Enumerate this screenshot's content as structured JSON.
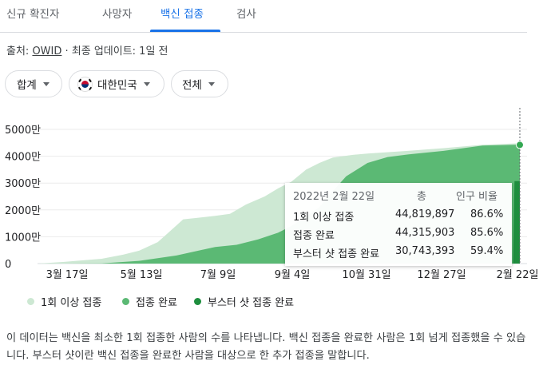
{
  "tabs": [
    {
      "label": "신규 확진자"
    },
    {
      "label": "사망자"
    },
    {
      "label": "백신 접종"
    },
    {
      "label": "검사"
    }
  ],
  "source": {
    "prefix": "출처: ",
    "name": "OWID",
    "suffix": " · 최종 업데이트: 1일 전"
  },
  "filters": {
    "scope": "합계",
    "country": "대한민국",
    "range": "전체"
  },
  "chart_data": {
    "type": "area",
    "x_tick_labels": [
      "3월 17일",
      "5월 13일",
      "7월 9일",
      "9월 4일",
      "10월 31일",
      "12월 27일",
      "2월 22일"
    ],
    "y_tick_labels": [
      "0",
      "1000만",
      "2000만",
      "3000만",
      "4000만",
      "5000만"
    ],
    "ylim": [
      0,
      5000
    ],
    "y_unit": "만",
    "x_range": [
      "2021-02-26",
      "2022-02-22"
    ],
    "series": [
      {
        "name": "1회 이상 접종",
        "color": "#cde8d3",
        "points": [
          [
            "2021-02-26",
            0
          ],
          [
            "2021-03-17",
            60
          ],
          [
            "2021-04-15",
            180
          ],
          [
            "2021-05-01",
            330
          ],
          [
            "2021-05-13",
            480
          ],
          [
            "2021-05-27",
            800
          ],
          [
            "2021-06-05",
            1200
          ],
          [
            "2021-06-15",
            1650
          ],
          [
            "2021-06-25",
            1700
          ],
          [
            "2021-07-09",
            1780
          ],
          [
            "2021-07-20",
            1850
          ],
          [
            "2021-08-01",
            2200
          ],
          [
            "2021-08-15",
            2500
          ],
          [
            "2021-08-25",
            2800
          ],
          [
            "2021-09-04",
            3050
          ],
          [
            "2021-09-15",
            3500
          ],
          [
            "2021-09-25",
            3750
          ],
          [
            "2021-10-05",
            3950
          ],
          [
            "2021-10-20",
            4050
          ],
          [
            "2021-10-31",
            4100
          ],
          [
            "2021-11-30",
            4200
          ],
          [
            "2021-12-27",
            4300
          ],
          [
            "2022-01-25",
            4430
          ],
          [
            "2022-02-22",
            4482
          ]
        ]
      },
      {
        "name": "접종 완료",
        "color": "#5bb974",
        "points": [
          [
            "2021-02-26",
            0
          ],
          [
            "2021-03-17",
            0
          ],
          [
            "2021-04-15",
            10
          ],
          [
            "2021-05-13",
            100
          ],
          [
            "2021-06-10",
            300
          ],
          [
            "2021-07-09",
            620
          ],
          [
            "2021-07-25",
            700
          ],
          [
            "2021-08-10",
            900
          ],
          [
            "2021-08-25",
            1150
          ],
          [
            "2021-09-04",
            1400
          ],
          [
            "2021-09-15",
            1750
          ],
          [
            "2021-09-25",
            2100
          ],
          [
            "2021-10-05",
            2700
          ],
          [
            "2021-10-15",
            3250
          ],
          [
            "2021-10-31",
            3750
          ],
          [
            "2021-11-15",
            3970
          ],
          [
            "2021-12-01",
            4070
          ],
          [
            "2021-12-27",
            4200
          ],
          [
            "2022-01-25",
            4400
          ],
          [
            "2022-02-22",
            4432
          ]
        ]
      },
      {
        "name": "부스터 샷 접종 완료",
        "color": "#1e8e3e",
        "points": [
          [
            "2022-02-17",
            0
          ],
          [
            "2022-02-18",
            3074
          ],
          [
            "2022-02-22",
            3074
          ]
        ]
      }
    ]
  },
  "tooltip": {
    "date": "2022년 2월 22일",
    "col_total": "총",
    "col_ratio": "인구 비율",
    "rows": [
      {
        "label": "1회 이상 접종",
        "total": "44,819,897",
        "ratio": "86.6%"
      },
      {
        "label": "접종 완료",
        "total": "44,315,903",
        "ratio": "85.6%"
      },
      {
        "label": "부스터 샷 접종 완료",
        "total": "30,743,393",
        "ratio": "59.4%"
      }
    ]
  },
  "description": "이 데이터는 백신을 최소한 1회 접종한 사람의 수를 나타냅니다. 백신 접종을 완료한 사람은 1회 넘게 접종했을 수 있습니다. 부스터 샷이란 백신 접종을 완료한 사람을 대상으로 한 추가 접종을 말합니다."
}
